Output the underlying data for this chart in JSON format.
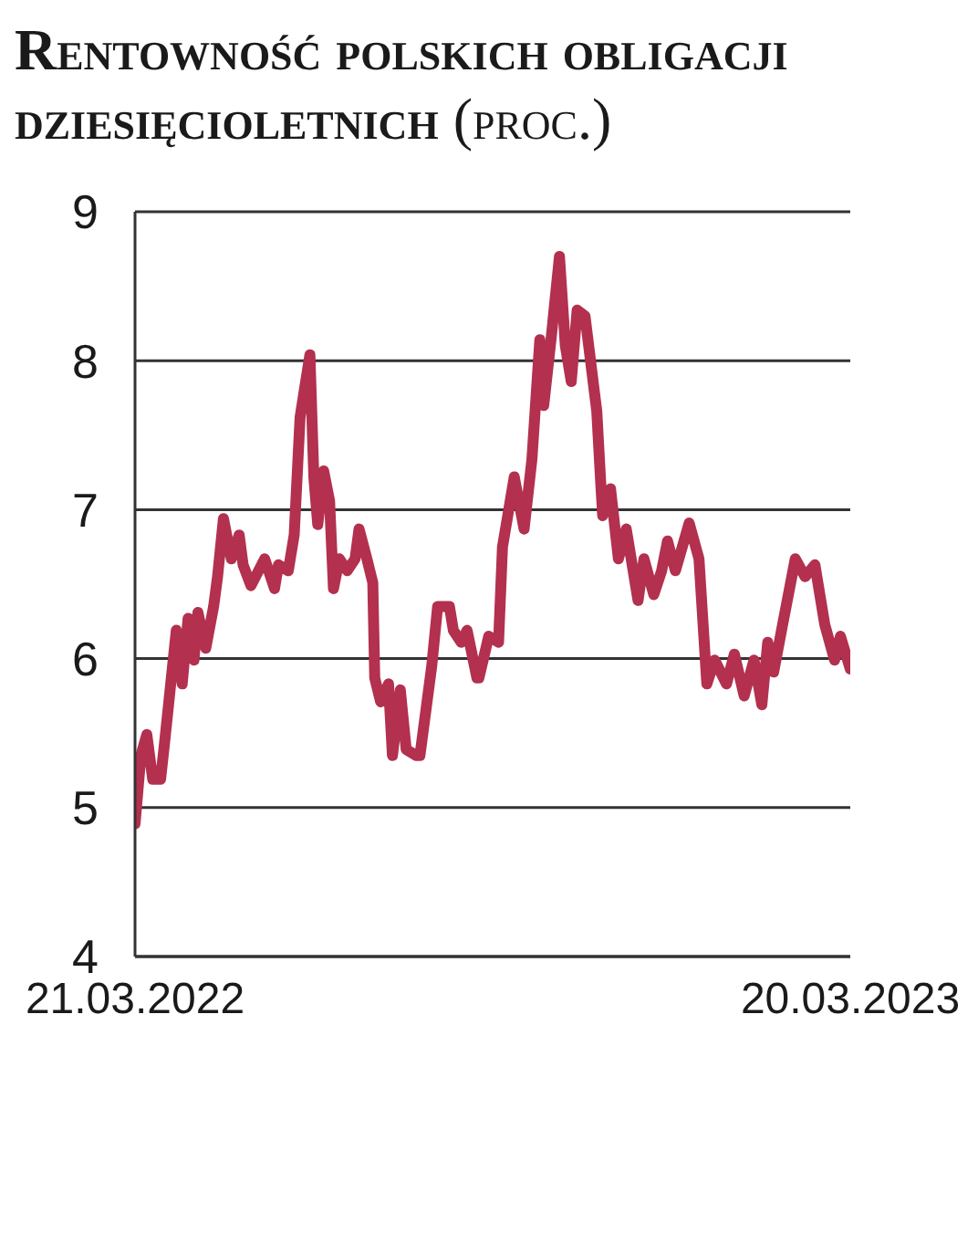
{
  "chart_data": {
    "type": "line",
    "title": "Rentowność polskich obligacji dziesięcioletnich",
    "subtitle": "(proc.)",
    "x": [
      "2022-03-21",
      "2022-03-24",
      "2022-03-27",
      "2022-03-30",
      "2022-04-03",
      "2022-04-05",
      "2022-04-11",
      "2022-04-14",
      "2022-04-17",
      "2022-04-20",
      "2022-04-22",
      "2022-04-26",
      "2022-04-30",
      "2022-05-02",
      "2022-05-05",
      "2022-05-09",
      "2022-05-13",
      "2022-05-15",
      "2022-05-19",
      "2022-05-26",
      "2022-05-31",
      "2022-06-02",
      "2022-06-07",
      "2022-06-10",
      "2022-06-13",
      "2022-06-18",
      "2022-06-20",
      "2022-06-22",
      "2022-06-25",
      "2022-06-28",
      "2022-06-30",
      "2022-07-03",
      "2022-07-07",
      "2022-07-11",
      "2022-07-13",
      "2022-07-17",
      "2022-07-20",
      "2022-07-21",
      "2022-07-24",
      "2022-07-28",
      "2022-07-30",
      "2022-08-03",
      "2022-08-06",
      "2022-08-11",
      "2022-08-13",
      "2022-08-19",
      "2022-08-22",
      "2022-08-28",
      "2022-08-30",
      "2022-09-03",
      "2022-09-06",
      "2022-09-11",
      "2022-09-12",
      "2022-09-17",
      "2022-09-22",
      "2022-09-24",
      "2022-09-30",
      "2022-10-05",
      "2022-10-09",
      "2022-10-13",
      "2022-10-15",
      "2022-10-19",
      "2022-10-23",
      "2022-10-26",
      "2022-10-29",
      "2022-11-01",
      "2022-11-05",
      "2022-11-11",
      "2022-11-13",
      "2022-11-14",
      "2022-11-18",
      "2022-11-22",
      "2022-11-26",
      "2022-12-02",
      "2022-12-05",
      "2022-12-10",
      "2022-12-14",
      "2022-12-17",
      "2022-12-21",
      "2022-12-28",
      "2023-01-02",
      "2023-01-06",
      "2023-01-10",
      "2023-01-16",
      "2023-01-20",
      "2023-01-25",
      "2023-01-30",
      "2023-02-03",
      "2023-02-06",
      "2023-02-09",
      "2023-02-13",
      "2023-02-20",
      "2023-02-25",
      "2023-03-02",
      "2023-03-07",
      "2023-03-12",
      "2023-03-15",
      "2023-03-20"
    ],
    "series": [
      {
        "color": "#b3304f",
        "values": [
          4.89,
          5.35,
          5.49,
          5.19,
          5.19,
          5.43,
          6.19,
          5.83,
          6.27,
          5.99,
          6.31,
          6.07,
          6.35,
          6.55,
          6.94,
          6.67,
          6.83,
          6.63,
          6.49,
          6.67,
          6.47,
          6.63,
          6.59,
          6.83,
          7.62,
          8.04,
          7.22,
          6.9,
          7.26,
          7.06,
          6.47,
          6.67,
          6.59,
          6.67,
          6.87,
          6.67,
          6.51,
          5.87,
          5.71,
          5.83,
          5.35,
          5.79,
          5.39,
          5.35,
          5.35,
          5.95,
          6.35,
          6.35,
          6.19,
          6.11,
          6.19,
          5.87,
          5.87,
          6.15,
          6.11,
          6.75,
          7.22,
          6.87,
          7.34,
          8.14,
          7.7,
          8.18,
          8.7,
          8.1,
          7.86,
          8.34,
          8.3,
          7.66,
          7.18,
          6.96,
          7.14,
          6.67,
          6.87,
          6.39,
          6.67,
          6.43,
          6.59,
          6.79,
          6.59,
          6.91,
          6.67,
          5.83,
          5.99,
          5.83,
          6.03,
          5.75,
          5.99,
          5.69,
          6.11,
          5.91,
          6.19,
          6.67,
          6.55,
          6.63,
          6.23,
          5.99,
          6.15,
          5.93
        ]
      }
    ],
    "xlim": [
      "2022-03-21",
      "2023-03-20"
    ],
    "xticks": [
      {
        "value": "2022-03-21",
        "label": "21.03.2022"
      },
      {
        "value": "2023-03-20",
        "label": "20.03.2023"
      }
    ],
    "ylim": [
      4,
      9
    ],
    "yticks": [
      4,
      5,
      6,
      7,
      8,
      9
    ],
    "grid": "y",
    "legend": false,
    "marker": "none",
    "line_style": "solid"
  }
}
